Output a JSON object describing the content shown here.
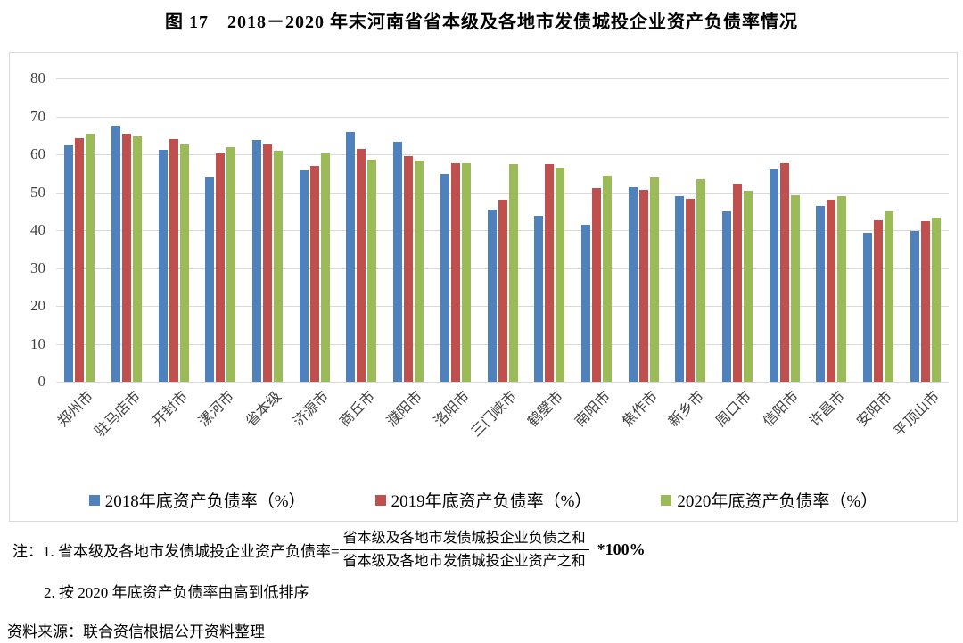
{
  "title": "图 17　2018－2020 年末河南省省本级及各地市发债城投企业资产负债率情况",
  "chart_data": {
    "type": "bar",
    "categories": [
      "郑州市",
      "驻马店市",
      "开封市",
      "漯河市",
      "省本级",
      "济源市",
      "商丘市",
      "濮阳市",
      "洛阳市",
      "三门峡市",
      "鹤壁市",
      "南阳市",
      "焦作市",
      "新乡市",
      "周口市",
      "信阳市",
      "许昌市",
      "安阳市",
      "平顶山市"
    ],
    "series": [
      {
        "name": "2018年底资产负债率（%）",
        "color": "#4F81BD",
        "values": [
          62.4,
          67.5,
          61.2,
          54.0,
          63.8,
          55.7,
          65.9,
          63.2,
          54.9,
          45.5,
          43.8,
          41.5,
          51.3,
          49.0,
          44.9,
          56.1,
          46.4,
          39.3,
          39.8
        ]
      },
      {
        "name": "2019年底资产负债率（%）",
        "color": "#C0504D",
        "values": [
          64.3,
          65.3,
          64.1,
          60.3,
          62.5,
          57.0,
          61.3,
          59.6,
          57.7,
          48.1,
          57.5,
          51.0,
          50.6,
          48.2,
          52.2,
          57.6,
          48.1,
          42.7,
          42.4
        ]
      },
      {
        "name": "2020年底资产负债率（%）",
        "color": "#9BBB59",
        "values": [
          65.5,
          64.6,
          62.6,
          62.0,
          61.0,
          60.3,
          58.6,
          58.3,
          57.6,
          57.3,
          56.4,
          54.4,
          53.9,
          53.4,
          50.3,
          49.1,
          48.9,
          45.0,
          43.2
        ]
      }
    ],
    "ylim": [
      0,
      80
    ],
    "yticks": [
      0,
      10,
      20,
      30,
      40,
      50,
      60,
      70,
      80
    ],
    "grid": true,
    "legend_position": "bottom"
  },
  "notes": {
    "line1_prefix": "注：1. 省本级及各地市发债城投企业资产负债率=",
    "fraction_numerator": "省本级及各地市发债城投企业负债之和",
    "fraction_denominator": "省本级及各地市发债城投企业资产之和",
    "line1_suffix": "*100%",
    "line2": "2. 按 2020 年底资产负债率由高到低排序",
    "source": "资料来源：联合资信根据公开资料整理"
  },
  "colors": {
    "grid": "#D9D9D9",
    "axis_text": "#3F3F3F",
    "box_border": "#D9D9D9"
  }
}
